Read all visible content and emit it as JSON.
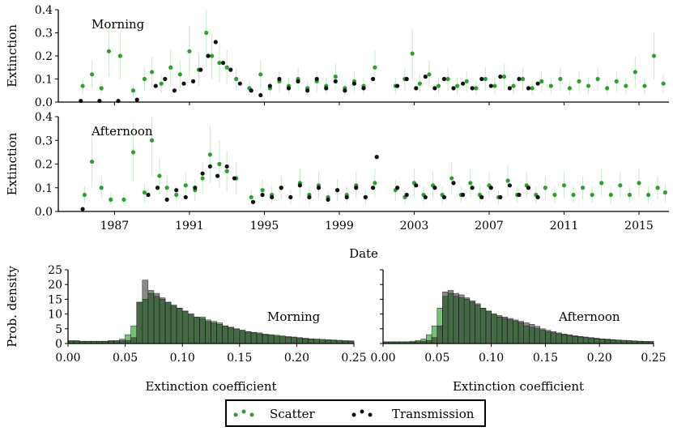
{
  "colors": {
    "scatter": "#2ca02c",
    "transmission": "#111111",
    "axis": "#000000"
  },
  "legend": {
    "placement": "bottom-center",
    "items": [
      {
        "label": "Scatter",
        "color": "#2ca02c"
      },
      {
        "label": "Transmission",
        "color": "#111111"
      }
    ]
  },
  "chart_data": [
    {
      "type": "scatter",
      "title": "Morning",
      "ylabel": "Extinction",
      "xlabel": "",
      "xlim": [
        1984.0,
        2016.6
      ],
      "ylim": [
        0,
        0.4
      ],
      "yticks": [
        0.0,
        0.1,
        0.2,
        0.3,
        0.4
      ],
      "yticklabels": [
        "0.0",
        "0.1",
        "0.2",
        "0.3",
        "0.4"
      ],
      "xticks": [
        1987,
        1991,
        1995,
        1999,
        2003,
        2007,
        2011,
        2015
      ],
      "xticklabels": [],
      "series": [
        {
          "name": "Scatter",
          "x": [
            1985.3,
            1985.8,
            1986.3,
            1986.7,
            1987.3,
            1988.0,
            1988.6,
            1989.0,
            1989.5,
            1990.0,
            1990.5,
            1991.0,
            1991.5,
            1991.9,
            1992.2,
            1992.6,
            1993.0,
            1993.5,
            1994.2,
            1994.8,
            1995.3,
            1995.8,
            1996.3,
            1996.8,
            1997.3,
            1997.8,
            1998.3,
            1998.8,
            1999.3,
            1999.8,
            2000.3,
            2000.9,
            2002.0,
            2002.5,
            2002.9,
            2003.3,
            2003.8,
            2004.3,
            2004.8,
            2005.3,
            2005.8,
            2006.3,
            2006.8,
            2007.3,
            2007.8,
            2008.3,
            2008.8,
            2009.3,
            2009.8,
            2010.3,
            2010.8,
            2011.3,
            2011.8,
            2012.3,
            2012.8,
            2013.3,
            2013.8,
            2014.3,
            2014.8,
            2015.3,
            2015.8,
            2016.3
          ],
          "y": [
            0.07,
            0.12,
            0.06,
            0.22,
            0.2,
            0.05,
            0.1,
            0.13,
            0.08,
            0.15,
            0.12,
            0.22,
            0.14,
            0.3,
            0.2,
            0.17,
            0.15,
            0.1,
            0.06,
            0.12,
            0.06,
            0.09,
            0.07,
            0.1,
            0.06,
            0.09,
            0.07,
            0.11,
            0.06,
            0.09,
            0.07,
            0.15,
            0.07,
            0.1,
            0.21,
            0.08,
            0.12,
            0.07,
            0.1,
            0.07,
            0.09,
            0.06,
            0.1,
            0.07,
            0.11,
            0.07,
            0.1,
            0.06,
            0.09,
            0.07,
            0.1,
            0.06,
            0.09,
            0.07,
            0.1,
            0.06,
            0.09,
            0.07,
            0.13,
            0.07,
            0.2,
            0.08
          ]
        },
        {
          "name": "Transmission",
          "x": [
            1985.2,
            1986.2,
            1987.2,
            1988.2,
            1989.2,
            1989.7,
            1990.2,
            1990.7,
            1991.2,
            1991.6,
            1992.0,
            1992.4,
            1992.8,
            1993.2,
            1993.7,
            1994.3,
            1994.8,
            1995.3,
            1995.8,
            1996.3,
            1996.8,
            1997.3,
            1997.8,
            1998.3,
            1998.8,
            1999.3,
            1999.8,
            2000.3,
            2000.8,
            2002.1,
            2002.6,
            2003.1,
            2003.6,
            2004.1,
            2004.6,
            2005.1,
            2005.6,
            2006.1,
            2006.6,
            2007.1,
            2007.6,
            2008.1,
            2008.6,
            2009.1,
            2009.6
          ],
          "y": [
            0.005,
            0.005,
            0.005,
            0.01,
            0.07,
            0.1,
            0.05,
            0.08,
            0.09,
            0.14,
            0.2,
            0.26,
            0.17,
            0.14,
            0.08,
            0.05,
            0.03,
            0.07,
            0.1,
            0.06,
            0.09,
            0.05,
            0.1,
            0.06,
            0.09,
            0.05,
            0.08,
            0.06,
            0.1,
            0.07,
            0.1,
            0.06,
            0.11,
            0.06,
            0.1,
            0.06,
            0.08,
            0.06,
            0.1,
            0.07,
            0.11,
            0.06,
            0.1,
            0.06,
            0.08
          ]
        }
      ]
    },
    {
      "type": "scatter",
      "title": "Afternoon",
      "ylabel": "Extinction",
      "xlabel": "Date",
      "xlim": [
        1984.0,
        2016.6
      ],
      "ylim": [
        0,
        0.4
      ],
      "yticks": [
        0.0,
        0.1,
        0.2,
        0.3,
        0.4
      ],
      "yticklabels": [
        "0.0",
        "0.1",
        "0.2",
        "0.3",
        "0.4"
      ],
      "xticks": [
        1987,
        1991,
        1995,
        1999,
        2003,
        2007,
        2011,
        2015
      ],
      "xticklabels": [
        "1987",
        "1991",
        "1995",
        "1999",
        "2003",
        "2007",
        "2011",
        "2015"
      ],
      "series": [
        {
          "name": "Scatter",
          "x": [
            1985.4,
            1985.8,
            1986.3,
            1986.8,
            1987.5,
            1988.0,
            1988.6,
            1989.0,
            1989.4,
            1989.8,
            1990.3,
            1990.8,
            1991.3,
            1991.7,
            1992.1,
            1992.6,
            1993.0,
            1993.5,
            1994.3,
            1994.9,
            1995.4,
            1995.9,
            1996.4,
            1996.9,
            1997.4,
            1997.9,
            1998.4,
            1998.9,
            1999.4,
            1999.9,
            2000.4,
            2000.9,
            2002.0,
            2002.5,
            2003.0,
            2003.5,
            2004.0,
            2004.5,
            2005.0,
            2005.5,
            2006.0,
            2006.5,
            2007.0,
            2007.5,
            2008.0,
            2008.5,
            2009.0,
            2009.5,
            2010.0,
            2010.5,
            2011.0,
            2011.5,
            2012.0,
            2012.5,
            2013.0,
            2013.5,
            2014.0,
            2014.5,
            2015.0,
            2015.5,
            2016.0,
            2016.4
          ],
          "y": [
            0.07,
            0.21,
            0.1,
            0.05,
            0.05,
            0.25,
            0.08,
            0.3,
            0.15,
            0.1,
            0.07,
            0.11,
            0.09,
            0.14,
            0.24,
            0.2,
            0.17,
            0.14,
            0.06,
            0.09,
            0.07,
            0.1,
            0.06,
            0.12,
            0.07,
            0.11,
            0.06,
            0.09,
            0.07,
            0.11,
            0.06,
            0.12,
            0.09,
            0.06,
            0.12,
            0.07,
            0.11,
            0.07,
            0.14,
            0.07,
            0.12,
            0.07,
            0.11,
            0.06,
            0.13,
            0.07,
            0.11,
            0.07,
            0.1,
            0.07,
            0.11,
            0.07,
            0.1,
            0.07,
            0.12,
            0.07,
            0.11,
            0.07,
            0.12,
            0.07,
            0.1,
            0.08
          ]
        },
        {
          "name": "Transmission",
          "x": [
            1985.3,
            1988.8,
            1989.3,
            1989.8,
            1990.3,
            1990.8,
            1991.3,
            1991.7,
            1992.1,
            1992.5,
            1993.0,
            1993.4,
            1994.4,
            1994.9,
            1995.4,
            1995.9,
            1996.4,
            1996.9,
            1997.4,
            1997.9,
            1998.4,
            1998.9,
            1999.4,
            1999.9,
            2000.4,
            2000.8,
            2001.0,
            2002.1,
            2002.6,
            2003.1,
            2003.6,
            2004.1,
            2004.6,
            2005.1,
            2005.6,
            2006.1,
            2006.6,
            2007.1,
            2007.6,
            2008.1,
            2008.6,
            2009.1,
            2009.6
          ],
          "y": [
            0.01,
            0.07,
            0.1,
            0.05,
            0.09,
            0.06,
            0.1,
            0.16,
            0.19,
            0.15,
            0.19,
            0.14,
            0.04,
            0.07,
            0.06,
            0.1,
            0.06,
            0.11,
            0.06,
            0.1,
            0.05,
            0.09,
            0.06,
            0.1,
            0.06,
            0.1,
            0.23,
            0.1,
            0.07,
            0.11,
            0.06,
            0.1,
            0.06,
            0.12,
            0.07,
            0.1,
            0.06,
            0.1,
            0.06,
            0.11,
            0.07,
            0.1,
            0.06
          ]
        }
      ]
    },
    {
      "type": "bar",
      "title": "Morning",
      "ylabel": "Prob. density",
      "xlabel": "Extinction coefficient",
      "xlim": [
        0,
        0.25
      ],
      "ylim": [
        0,
        25
      ],
      "yticks": [
        0,
        5,
        10,
        15,
        20,
        25
      ],
      "yticklabels": [
        "0",
        "5",
        "10",
        "15",
        "20",
        "25"
      ],
      "xticks": [
        0,
        0.05,
        0.1,
        0.15,
        0.2,
        0.25
      ],
      "xticklabels": [
        "0.00",
        "0.05",
        "0.10",
        "0.15",
        "0.20",
        "0.25"
      ],
      "bin_width": 0.005,
      "series": [
        {
          "name": "Scatter",
          "values": [
            1,
            1,
            0.8,
            0.8,
            0.8,
            0.8,
            0.8,
            1,
            1,
            1.5,
            3,
            6,
            14,
            15,
            17,
            16,
            15,
            14,
            13,
            12,
            11,
            10,
            9,
            9,
            8,
            7.5,
            7,
            6,
            5.5,
            5,
            4.5,
            4,
            3.8,
            3.6,
            3.2,
            3,
            2.8,
            2.6,
            2.4,
            2.2,
            2,
            1.8,
            1.6,
            1.5,
            1.4,
            1.3,
            1.2,
            1.1,
            1,
            0.9
          ]
        },
        {
          "name": "Transmission",
          "values": [
            0.8,
            0.8,
            0.6,
            0.6,
            0.6,
            0.6,
            0.6,
            0.8,
            0.8,
            1,
            1,
            2,
            14,
            21.5,
            18,
            17,
            15.5,
            14,
            13,
            12,
            11,
            10,
            9,
            8.5,
            7.5,
            7,
            6.5,
            6,
            5.5,
            5,
            4.5,
            4,
            3.6,
            3.3,
            3,
            2.8,
            2.5,
            2.3,
            2.1,
            2,
            1.8,
            1.6,
            1.5,
            1.4,
            1.2,
            1.1,
            1,
            0.9,
            0.8,
            0.8
          ]
        }
      ]
    },
    {
      "type": "bar",
      "title": "Afternoon",
      "ylabel": "",
      "xlabel": "Extinction coefficient",
      "xlim": [
        0,
        0.25
      ],
      "ylim": [
        0,
        25
      ],
      "yticks": [
        0,
        5,
        10,
        15,
        20,
        25
      ],
      "yticklabels": [],
      "xticks": [
        0,
        0.05,
        0.1,
        0.15,
        0.2,
        0.25
      ],
      "xticklabels": [
        "0.00",
        "0.05",
        "0.10",
        "0.15",
        "0.20",
        "0.25"
      ],
      "bin_width": 0.005,
      "series": [
        {
          "name": "Scatter",
          "values": [
            0.6,
            0.6,
            0.6,
            0.6,
            0.6,
            0.8,
            1,
            1.5,
            3,
            6,
            12,
            16,
            17,
            16,
            15.5,
            15,
            14,
            13,
            12,
            11,
            10,
            9,
            8.5,
            8,
            7.5,
            7,
            6,
            5.5,
            5,
            4.5,
            4,
            3.6,
            3.3,
            3,
            2.7,
            2.4,
            2.2,
            2,
            1.8,
            1.6,
            1.4,
            1.3,
            1.2,
            1.1,
            1,
            0.9,
            0.8,
            0.7,
            0.7,
            0.6
          ]
        },
        {
          "name": "Transmission",
          "values": [
            0.4,
            0.4,
            0.4,
            0.4,
            0.4,
            0.5,
            0.6,
            0.8,
            1,
            2,
            6,
            17.5,
            18,
            17,
            16.5,
            15.5,
            14.5,
            13.5,
            12,
            11,
            10,
            9.5,
            9,
            8.5,
            8,
            7.5,
            7,
            6.5,
            5.8,
            5,
            4.5,
            4,
            3.6,
            3.2,
            3,
            2.7,
            2.4,
            2.2,
            2,
            1.8,
            1.6,
            1.5,
            1.3,
            1.2,
            1.1,
            1,
            0.9,
            0.8,
            0.7,
            0.7
          ]
        }
      ]
    }
  ]
}
